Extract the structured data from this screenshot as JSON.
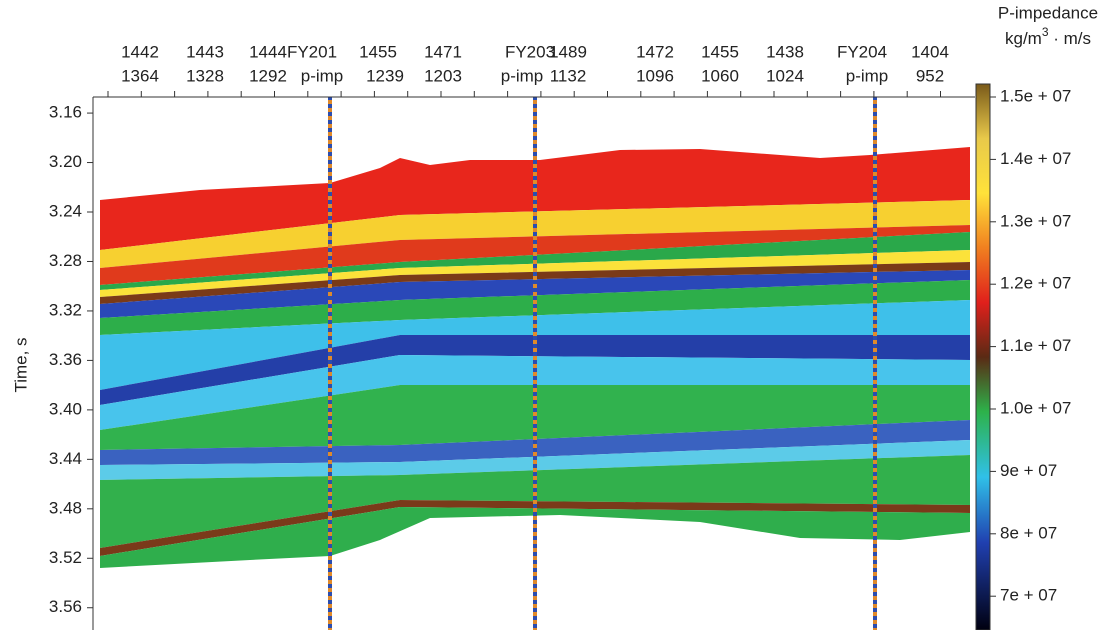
{
  "chart_data": {
    "type": "heatmap",
    "y_label": "Time, s",
    "ylim": [
      3.147,
      3.578
    ],
    "y_inverted": true,
    "yticks": [
      3.16,
      {
        "value": 3.2,
        "label": "3.20"
      },
      3.24,
      3.28,
      3.32,
      3.36,
      {
        "value": 3.4,
        "label": "3.40"
      },
      3.44,
      3.48,
      3.52,
      3.56
    ],
    "columns": [
      {
        "top": "1442",
        "bottom": "1364"
      },
      {
        "top": "1443",
        "bottom": "1328"
      },
      {
        "top": "1444",
        "bottom": "1292"
      },
      {
        "top": "FY201",
        "bottom": "p-imp",
        "color": "#e3202a"
      },
      {
        "top": "1455",
        "bottom": "1239"
      },
      {
        "top": "1471",
        "bottom": "1203"
      },
      {
        "top": "FY203",
        "bottom": "p-imp",
        "color": "#e3202a"
      },
      {
        "top": "1489",
        "bottom": "1132"
      },
      {
        "top": "1472",
        "bottom": "1096"
      },
      {
        "top": "1455",
        "bottom": "1060"
      },
      {
        "top": "1438",
        "bottom": "1024"
      },
      {
        "top": "FY204",
        "bottom": "p-imp",
        "color": "#e3202a"
      },
      {
        "top": "1404",
        "bottom": "952"
      }
    ],
    "colorbar": {
      "title": "P-impedance",
      "unit_parts": [
        "kg/m",
        "3",
        " · m/s"
      ],
      "labels": [
        "1.5e + 07",
        "1.4e + 07",
        "1.3e + 07",
        "1.2e + 07",
        "1.1e + 07",
        "1.0e + 07",
        "9e + 07",
        "8e + 07",
        "7e + 07"
      ]
    }
  }
}
